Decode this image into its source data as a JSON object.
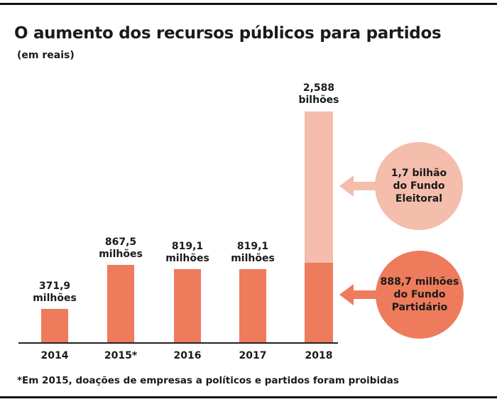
{
  "title": "O aumento dos recursos públicos para partidos",
  "subtitle": "(em reais)",
  "footnote": "*Em 2015, doações de empresas a políticos e partidos foram proibidas",
  "colors": {
    "bar": "#ee7b5c",
    "fundo_eleitoral": "#f4bdac",
    "fundo_partidario": "#ee7b5c"
  },
  "chart_data": {
    "type": "bar",
    "categories": [
      "2014",
      "2015*",
      "2016",
      "2017",
      "2018"
    ],
    "values": [
      371.9,
      867.5,
      819.1,
      819.1,
      2588
    ],
    "unit": "milhões de reais",
    "value_labels": [
      [
        "371,9",
        "milhões"
      ],
      [
        "867,5",
        "milhões"
      ],
      [
        "819,1",
        "milhões"
      ],
      [
        "819,1",
        "milhões"
      ],
      [
        "2,588",
        "bilhões"
      ]
    ],
    "stack_2018": [
      {
        "name": "Fundo Partidário",
        "value": 888.7
      },
      {
        "name": "Fundo Eleitoral",
        "value": 1700
      }
    ],
    "annotations": [
      {
        "lines": [
          "1,7 bilhão",
          "do Fundo",
          "Eleitoral"
        ]
      },
      {
        "lines": [
          "888,7 milhões",
          "do Fundo",
          "Partidário"
        ]
      }
    ],
    "ylim": [
      0,
      2588
    ]
  }
}
